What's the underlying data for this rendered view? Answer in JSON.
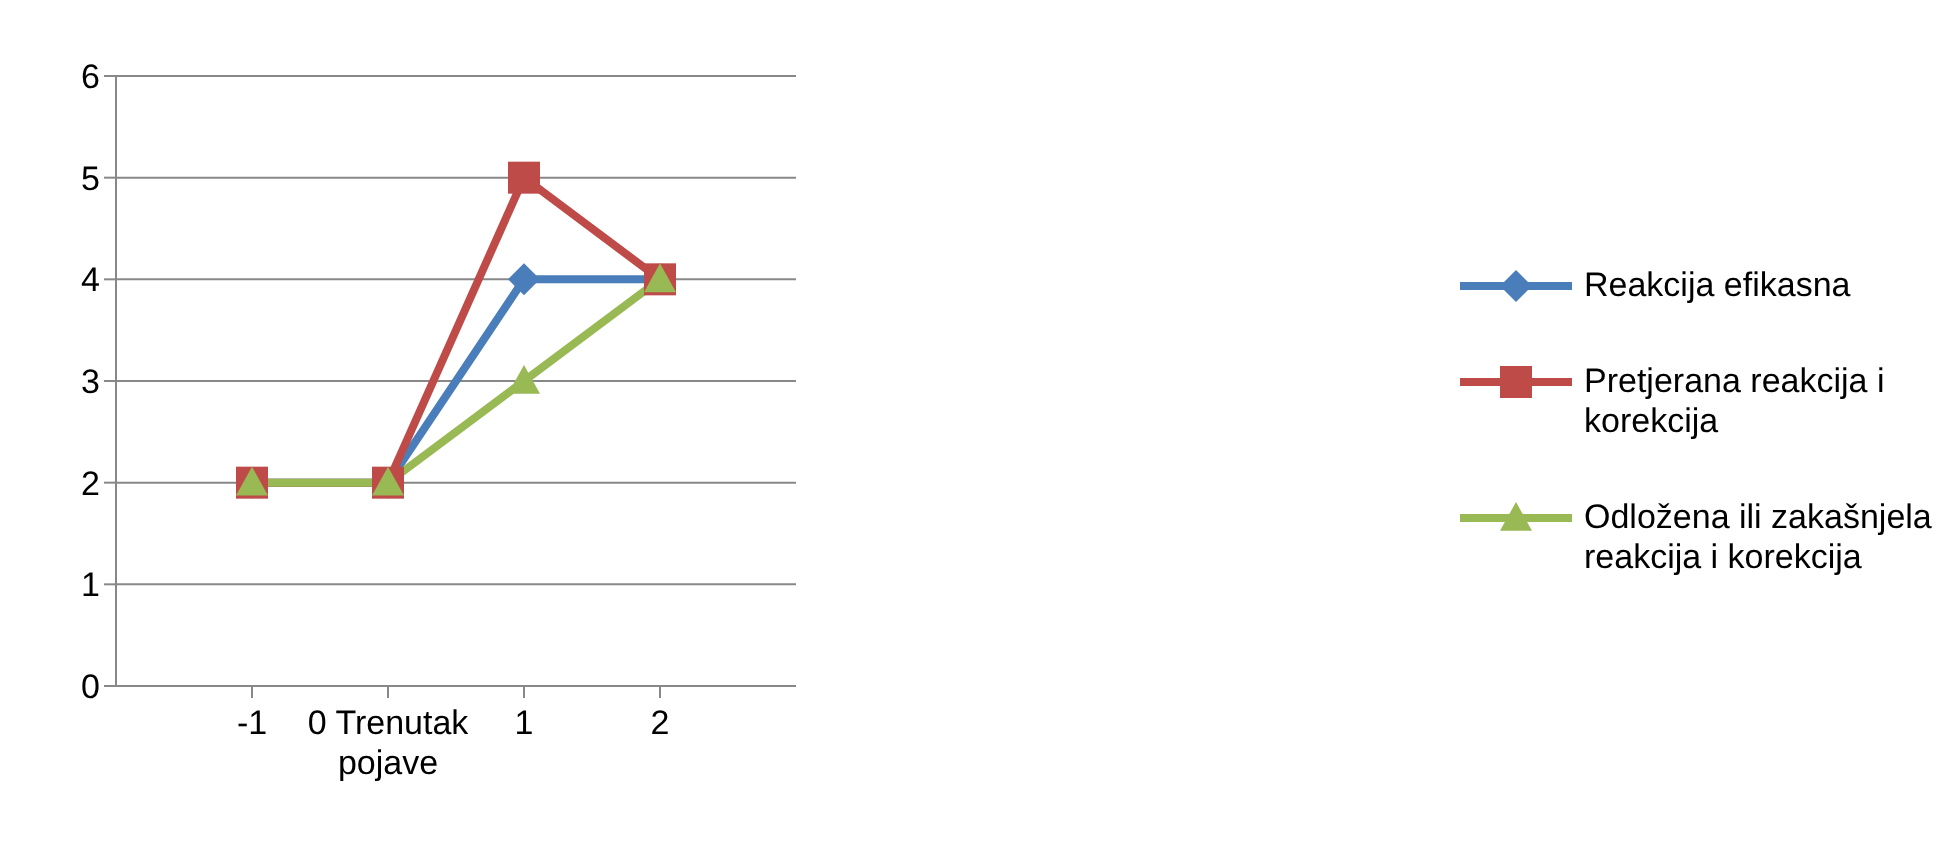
{
  "chart_data": {
    "type": "line",
    "categories": [
      "-1",
      "0 Trenutak pojave",
      "1",
      "2"
    ],
    "series": [
      {
        "name": "Reakcija efikasna",
        "color": "#4a7ebb",
        "values": [
          2,
          2,
          4,
          4
        ],
        "marker": "diamond"
      },
      {
        "name": "Pretjerana reakcija i korekcija",
        "color": "#be4b48",
        "values": [
          2,
          2,
          5,
          4
        ],
        "marker": "square"
      },
      {
        "name": "Odložena ili zakašnjela reakcija i korekcija",
        "color": "#98b954",
        "values": [
          2,
          2,
          3,
          4
        ],
        "marker": "triangle"
      }
    ],
    "ylim": [
      0,
      6
    ],
    "yticks": [
      0,
      1,
      2,
      3,
      4,
      5,
      6
    ],
    "grid": "y",
    "legend": "right",
    "line_style": "solid"
  }
}
